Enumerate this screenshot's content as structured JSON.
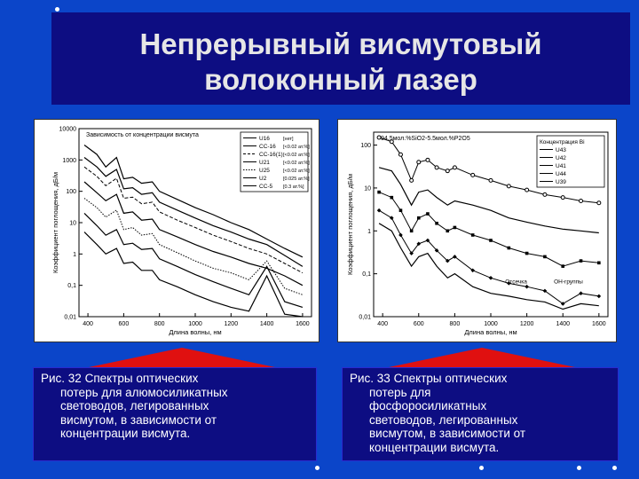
{
  "slide": {
    "title_line1": "Непрерывный висмутовый",
    "title_line2": "волоконный лазер"
  },
  "colors": {
    "background": "#0b45c9",
    "title_band": "#0d0d82",
    "accent_triangle": "#e01010",
    "text": "#ffffff"
  },
  "captions": [
    {
      "lines": [
        "Рис. 32 Спектры оптических",
        "потерь для алюмосиликатных",
        "световодов, легированных",
        "висмутом, в зависимости от",
        "концентрации висмута."
      ]
    },
    {
      "lines": [
        "Рис. 33 Спектры оптических",
        "потерь для",
        "фосфоросиликатных",
        "световодов, легированных",
        "висмутом, в зависимости от",
        "концентрации висмута."
      ]
    }
  ],
  "chart_data": [
    {
      "type": "line",
      "log_y": true,
      "xlabel": "Длина волны, нм",
      "ylabel": "Коэффициент поглощения, дБ/м",
      "xlim": [
        350,
        1650
      ],
      "ylim": [
        0.01,
        10000
      ],
      "x_ticks": [
        400,
        600,
        800,
        1000,
        1200,
        1400,
        1600
      ],
      "y_ticks": [
        {
          "value": 10000,
          "label": "10000"
        },
        {
          "value": 1000,
          "label": "1000"
        },
        {
          "value": 100,
          "label": "100"
        },
        {
          "value": 10,
          "label": "10"
        },
        {
          "value": 1,
          "label": "1"
        },
        {
          "value": 0.1,
          "label": "0,1"
        },
        {
          "value": 0.01,
          "label": "0,01"
        }
      ],
      "annotation": "Зависимость от концентрации висмута",
      "legend_position": "top-right",
      "series": [
        {
          "name": "U16",
          "conc": "[нет]",
          "style": "solid",
          "x": [
            380,
            450,
            500,
            560,
            600,
            650,
            700,
            760,
            800,
            900,
            1000,
            1100,
            1200,
            1300,
            1400,
            1500,
            1600
          ],
          "y": [
            3000,
            1500,
            600,
            1200,
            250,
            280,
            180,
            200,
            100,
            55,
            30,
            18,
            10,
            6,
            3,
            1.5,
            0.8
          ]
        },
        {
          "name": "CC-16",
          "conc": "[<0.02 ат.%]",
          "style": "solid",
          "x": [
            380,
            450,
            500,
            560,
            600,
            650,
            700,
            760,
            800,
            900,
            1000,
            1100,
            1200,
            1300,
            1400,
            1500,
            1600
          ],
          "y": [
            1200,
            600,
            300,
            500,
            120,
            130,
            80,
            90,
            45,
            25,
            14,
            8,
            5,
            3,
            2,
            0.9,
            0.4
          ]
        },
        {
          "name": "CC-16(1)",
          "conc": "[<0.02 ат.%]",
          "style": "dashed",
          "x": [
            380,
            450,
            500,
            560,
            600,
            650,
            700,
            760,
            800,
            900,
            1000,
            1100,
            1200,
            1300,
            1400,
            1500,
            1600
          ],
          "y": [
            600,
            300,
            150,
            260,
            60,
            65,
            40,
            45,
            22,
            12,
            7,
            4,
            2.5,
            1.5,
            1,
            0.5,
            0.25
          ]
        },
        {
          "name": "U21",
          "conc": "[<0.02 ат.%]",
          "style": "solid",
          "x": [
            380,
            450,
            500,
            560,
            600,
            650,
            700,
            760,
            800,
            900,
            1000,
            1100,
            1200,
            1300,
            1400,
            1500,
            1600
          ],
          "y": [
            200,
            90,
            50,
            80,
            20,
            22,
            12,
            13,
            6,
            3.5,
            2,
            1.2,
            0.8,
            0.5,
            0.35,
            0.2,
            0.1
          ]
        },
        {
          "name": "U25",
          "conc": "[<0.02 ат.%]",
          "style": "dotted",
          "x": [
            380,
            450,
            500,
            560,
            600,
            650,
            700,
            760,
            800,
            900,
            1000,
            1100,
            1200,
            1300,
            1400,
            1500,
            1600
          ],
          "y": [
            60,
            30,
            15,
            25,
            6,
            7,
            4,
            4.5,
            2,
            1.1,
            0.6,
            0.35,
            0.25,
            0.15,
            0.6,
            0.08,
            0.05
          ]
        },
        {
          "name": "U2",
          "conc": "[0.025 ат.%]",
          "style": "solid",
          "x": [
            380,
            450,
            500,
            560,
            600,
            650,
            700,
            760,
            800,
            900,
            1000,
            1100,
            1200,
            1300,
            1400,
            1500,
            1600
          ],
          "y": [
            20,
            8,
            4,
            6,
            2,
            2.2,
            1.4,
            1.5,
            0.7,
            0.4,
            0.22,
            0.13,
            0.08,
            0.05,
            0.4,
            0.03,
            0.02
          ]
        },
        {
          "name": "CC-5",
          "conc": "[0.3 ат.%]",
          "style": "solid",
          "x": [
            380,
            450,
            500,
            560,
            600,
            650,
            700,
            760,
            800,
            900,
            1000,
            1100,
            1200,
            1300,
            1400,
            1500,
            1600
          ],
          "y": [
            5,
            2,
            1,
            1.5,
            0.5,
            0.55,
            0.3,
            0.3,
            0.15,
            0.09,
            0.05,
            0.03,
            0.02,
            0.015,
            0.2,
            0.012,
            0.01
          ]
        }
      ]
    },
    {
      "type": "line",
      "log_y": true,
      "xlabel": "Длина волны, нм",
      "ylabel": "Коэффициент поглощения, дБ/м",
      "xlim": [
        350,
        1650
      ],
      "ylim": [
        0.01,
        200
      ],
      "x_ticks": [
        400,
        600,
        800,
        1000,
        1200,
        1400,
        1600
      ],
      "y_ticks": [
        {
          "value": 100,
          "label": "100"
        },
        {
          "value": 10,
          "label": "10"
        },
        {
          "value": 1,
          "label": "1"
        },
        {
          "value": 0.1,
          "label": "0,1"
        },
        {
          "value": 0.01,
          "label": "0,01"
        }
      ],
      "annotation": "94.5мол.%SiO2-5.5мол.%P2O5",
      "legend_title": "Концентрация Bi",
      "legend_position": "top-right",
      "labels": [
        "Отсечка",
        "ОН-группы"
      ],
      "series": [
        {
          "name": "U43",
          "style": "circles",
          "x": [
            380,
            450,
            500,
            560,
            600,
            650,
            700,
            760,
            800,
            900,
            1000,
            1100,
            1200,
            1300,
            1400,
            1500,
            1600
          ],
          "y": [
            150,
            120,
            60,
            15,
            40,
            45,
            30,
            25,
            30,
            20,
            15,
            11,
            9,
            7,
            6,
            5,
            4.5
          ]
        },
        {
          "name": "U42",
          "style": "solid",
          "x": [
            380,
            450,
            500,
            560,
            600,
            650,
            700,
            760,
            800,
            900,
            1000,
            1100,
            1200,
            1300,
            1400,
            1500,
            1600
          ],
          "y": [
            30,
            25,
            12,
            4,
            8,
            9,
            6,
            4,
            5,
            4,
            3,
            2,
            1.6,
            1.3,
            1.1,
            1,
            0.9
          ]
        },
        {
          "name": "U41",
          "style": "squares",
          "x": [
            380,
            450,
            500,
            560,
            600,
            650,
            700,
            760,
            800,
            900,
            1000,
            1100,
            1200,
            1300,
            1400,
            1500,
            1600
          ],
          "y": [
            8,
            6,
            3,
            1,
            2,
            2.5,
            1.5,
            1,
            1.2,
            0.8,
            0.6,
            0.4,
            0.3,
            0.25,
            0.15,
            0.2,
            0.18
          ]
        },
        {
          "name": "U44",
          "style": "diamonds",
          "x": [
            380,
            450,
            500,
            560,
            600,
            650,
            700,
            760,
            800,
            900,
            1000,
            1100,
            1200,
            1300,
            1400,
            1500,
            1600
          ],
          "y": [
            3,
            2,
            0.8,
            0.3,
            0.5,
            0.6,
            0.35,
            0.2,
            0.25,
            0.12,
            0.08,
            0.06,
            0.05,
            0.04,
            0.02,
            0.035,
            0.03
          ]
        },
        {
          "name": "U39",
          "style": "solid",
          "x": [
            380,
            450,
            500,
            560,
            600,
            650,
            700,
            760,
            800,
            900,
            1000,
            1100,
            1200,
            1300,
            1400,
            1500,
            1600
          ],
          "y": [
            1.5,
            1,
            0.4,
            0.15,
            0.25,
            0.3,
            0.15,
            0.08,
            0.1,
            0.05,
            0.035,
            0.03,
            0.025,
            0.022,
            0.015,
            0.02,
            0.018
          ]
        }
      ]
    }
  ]
}
